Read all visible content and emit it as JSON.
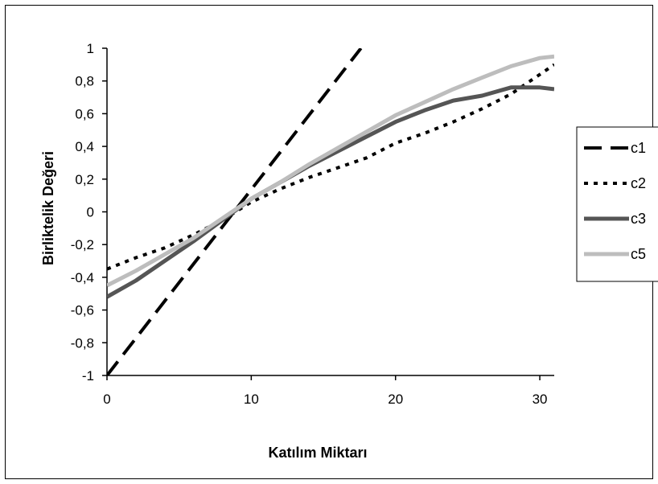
{
  "chart_data": {
    "type": "line",
    "title": "",
    "xlabel": "Katılım Miktarı",
    "ylabel": "Birliktelik Değeri",
    "xlim": [
      0,
      31
    ],
    "ylim": [
      -1,
      1
    ],
    "xticks": [
      "0",
      "10",
      "20",
      "30"
    ],
    "yticks": [
      "1",
      "0,8",
      "0,6",
      "0,4",
      "0,2",
      "0",
      "-0,2",
      "-0,4",
      "-0,6",
      "-0,8",
      "-1"
    ],
    "legend_position": "right",
    "grid": false,
    "series": [
      {
        "name": "c1",
        "style": "dash",
        "color": "#000000",
        "points": [
          [
            0,
            -1.0
          ],
          [
            17.6,
            1.0
          ]
        ]
      },
      {
        "name": "c2",
        "style": "dot",
        "color": "#000000",
        "points": [
          [
            0,
            -0.35
          ],
          [
            2,
            -0.28
          ],
          [
            4,
            -0.22
          ],
          [
            6,
            -0.14
          ],
          [
            8,
            -0.05
          ],
          [
            10,
            0.06
          ],
          [
            12,
            0.14
          ],
          [
            14,
            0.21
          ],
          [
            16,
            0.27
          ],
          [
            18,
            0.33
          ],
          [
            20,
            0.42
          ],
          [
            22,
            0.48
          ],
          [
            24,
            0.55
          ],
          [
            26,
            0.63
          ],
          [
            28,
            0.72
          ],
          [
            30,
            0.84
          ],
          [
            31,
            0.9
          ]
        ]
      },
      {
        "name": "c3",
        "style": "solid",
        "color": "#555555",
        "points": [
          [
            0,
            -0.52
          ],
          [
            2,
            -0.42
          ],
          [
            4,
            -0.3
          ],
          [
            6,
            -0.18
          ],
          [
            8,
            -0.05
          ],
          [
            10,
            0.08
          ],
          [
            12,
            0.18
          ],
          [
            14,
            0.28
          ],
          [
            16,
            0.37
          ],
          [
            18,
            0.46
          ],
          [
            20,
            0.55
          ],
          [
            22,
            0.62
          ],
          [
            24,
            0.68
          ],
          [
            26,
            0.71
          ],
          [
            28,
            0.76
          ],
          [
            30,
            0.76
          ],
          [
            31,
            0.75
          ]
        ]
      },
      {
        "name": "c5",
        "style": "solid",
        "color": "#bdbdbd",
        "points": [
          [
            0,
            -0.45
          ],
          [
            2,
            -0.36
          ],
          [
            4,
            -0.26
          ],
          [
            6,
            -0.16
          ],
          [
            8,
            -0.04
          ],
          [
            10,
            0.08
          ],
          [
            12,
            0.18
          ],
          [
            14,
            0.29
          ],
          [
            16,
            0.39
          ],
          [
            18,
            0.49
          ],
          [
            20,
            0.59
          ],
          [
            22,
            0.67
          ],
          [
            24,
            0.75
          ],
          [
            26,
            0.82
          ],
          [
            28,
            0.89
          ],
          [
            30,
            0.94
          ],
          [
            31,
            0.95
          ]
        ]
      }
    ]
  }
}
